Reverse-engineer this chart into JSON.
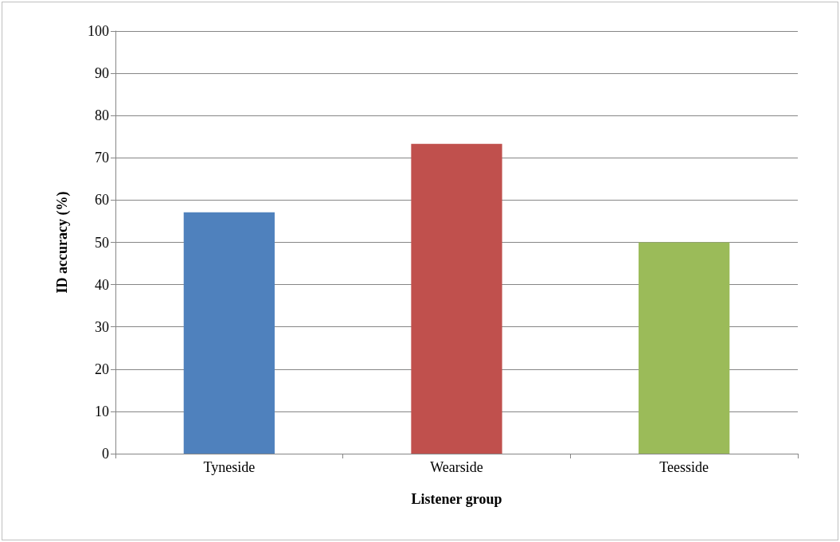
{
  "chart_data": {
    "type": "bar",
    "xlabel": "Listener group",
    "ylabel": "ID accuracy (%)",
    "categories": [
      "Tyneside",
      "Wearside",
      "Teesside"
    ],
    "values": [
      57.1,
      73.3,
      50
    ],
    "colors": [
      "#4f81bd",
      "#c0504d",
      "#9bbb59"
    ],
    "ylim": [
      0,
      100
    ],
    "yticks": [
      0,
      10,
      20,
      30,
      40,
      50,
      60,
      70,
      80,
      90,
      100
    ],
    "grid": "y"
  }
}
